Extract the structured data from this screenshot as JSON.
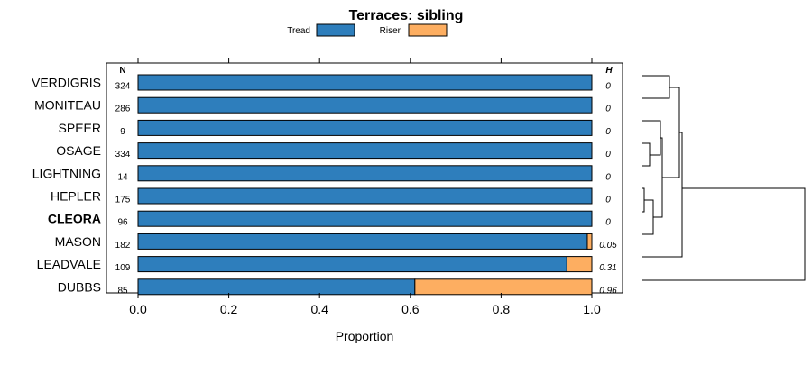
{
  "chart_data": {
    "type": "bar",
    "stacked": true,
    "orientation": "horizontal",
    "title": "Terraces: sibling",
    "xlabel": "Proportion",
    "xlim": [
      0,
      1
    ],
    "x_ticks": [
      "0.0",
      "0.2",
      "0.4",
      "0.6",
      "0.8",
      "1.0"
    ],
    "legend_position": "top",
    "n_header": "N",
    "h_header": "H",
    "highlighted_category": "CLEORA",
    "categories": [
      "VERDIGRIS",
      "MONITEAU",
      "SPEER",
      "OSAGE",
      "LIGHTNING",
      "HEPLER",
      "CLEORA",
      "MASON",
      "LEADVALE",
      "DUBBS"
    ],
    "n_values": [
      "324",
      "286",
      "9",
      "334",
      "14",
      "175",
      "96",
      "182",
      "109",
      "85"
    ],
    "h_values": [
      "0",
      "0",
      "0",
      "0",
      "0",
      "0",
      "0",
      "0.05",
      "0.31",
      "0.96"
    ],
    "series": [
      {
        "name": "Tread",
        "color": "#2e7ebc",
        "values": [
          1.0,
          1.0,
          1.0,
          1.0,
          1.0,
          1.0,
          1.0,
          0.99,
          0.945,
          0.61
        ]
      },
      {
        "name": "Riser",
        "color": "#fdae61",
        "values": [
          0.0,
          0.0,
          0.0,
          0.0,
          0.0,
          0.0,
          0.0,
          0.01,
          0.055,
          0.39
        ]
      }
    ],
    "dendrogram": true
  }
}
